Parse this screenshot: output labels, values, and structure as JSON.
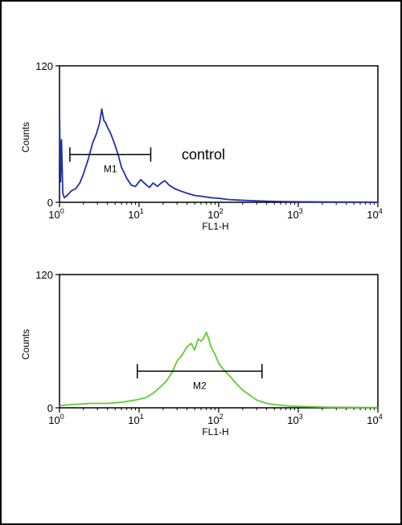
{
  "chart_data": [
    {
      "type": "line",
      "panel": "top",
      "xlabel": "FL1-H",
      "ylabel": "Counts",
      "x_scale": "log",
      "xlim": [
        1,
        10000
      ],
      "ylim": [
        0,
        120
      ],
      "x_ticks": [
        {
          "value": 1,
          "base": "10",
          "exp": "0"
        },
        {
          "value": 10,
          "base": "10",
          "exp": "1"
        },
        {
          "value": 100,
          "base": "10",
          "exp": "2"
        },
        {
          "value": 1000,
          "base": "10",
          "exp": "3"
        },
        {
          "value": 10000,
          "base": "10",
          "exp": "4"
        }
      ],
      "y_ticks": [
        0,
        120
      ],
      "annotation": "control",
      "marker": {
        "label": "M1",
        "x_start": 1.35,
        "x_end": 14,
        "y": 42
      },
      "series": [
        {
          "color": "#1f2fa8",
          "x": [
            1.0,
            1.03,
            1.06,
            1.1,
            1.15,
            1.25,
            1.4,
            1.6,
            1.8,
            2.0,
            2.3,
            2.6,
            2.9,
            3.2,
            3.4,
            3.6,
            3.8,
            4.0,
            4.3,
            4.6,
            5.0,
            5.5,
            6.0,
            7.0,
            8.0,
            9.0,
            10.5,
            12.0,
            13.5,
            15.0,
            17.0,
            19.0,
            21.0,
            24.0,
            28.0,
            33.0,
            40.0,
            50.0,
            65.0,
            80.0,
            100.0,
            130.0,
            170.0,
            250.0,
            400.0,
            700.0,
            1200.0,
            3000.0,
            10000.0
          ],
          "y": [
            80,
            18,
            55,
            8,
            4,
            6,
            10,
            12,
            17,
            25,
            38,
            52,
            60,
            70,
            82,
            72,
            70,
            66,
            62,
            57,
            50,
            41,
            31,
            21,
            15,
            14,
            20,
            16,
            13,
            17,
            14,
            17,
            19,
            15,
            12,
            10,
            8,
            6,
            5,
            4,
            3.5,
            2.5,
            2,
            1.5,
            1,
            0.6,
            0.4,
            0.2,
            0.1
          ]
        }
      ]
    },
    {
      "type": "line",
      "panel": "bottom",
      "xlabel": "FL1-H",
      "ylabel": "Counts",
      "x_scale": "log",
      "xlim": [
        1,
        10000
      ],
      "ylim": [
        0,
        120
      ],
      "x_ticks": [
        {
          "value": 1,
          "base": "10",
          "exp": "0"
        },
        {
          "value": 10,
          "base": "10",
          "exp": "1"
        },
        {
          "value": 100,
          "base": "10",
          "exp": "2"
        },
        {
          "value": 1000,
          "base": "10",
          "exp": "3"
        },
        {
          "value": 10000,
          "base": "10",
          "exp": "4"
        }
      ],
      "y_ticks": [
        0,
        120
      ],
      "marker": {
        "label": "M2",
        "x_start": 9.5,
        "x_end": 350,
        "y": 33
      },
      "series": [
        {
          "color": "#5fcc2f",
          "x": [
            1.0,
            1.5,
            2.5,
            4.0,
            6.0,
            9.0,
            12.0,
            15.0,
            18.0,
            22.0,
            26.0,
            30.0,
            35.0,
            40.0,
            45.0,
            50.0,
            55.0,
            60.0,
            65.0,
            70.0,
            75.0,
            80.0,
            90.0,
            100.0,
            120.0,
            140.0,
            170.0,
            200.0,
            250.0,
            300.0,
            400.0,
            550.0,
            800.0,
            1300.0,
            2500.0,
            10000.0
          ],
          "y": [
            2,
            3,
            4,
            4,
            5,
            7,
            9,
            13,
            18,
            24,
            32,
            42,
            48,
            55,
            58,
            52,
            62,
            60,
            63,
            68,
            62,
            55,
            48,
            40,
            33,
            28,
            21,
            16,
            11,
            7,
            4,
            2.5,
            1.5,
            1,
            0.5,
            0.2
          ]
        }
      ]
    }
  ]
}
